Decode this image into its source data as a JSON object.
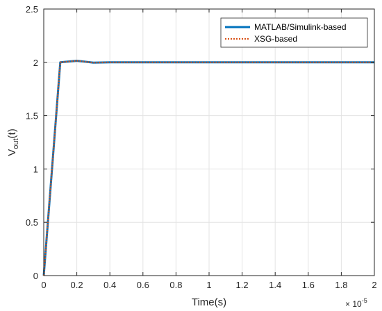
{
  "chart_data": {
    "type": "line",
    "xlabel": "Time(s)",
    "ylabel_base": "V",
    "ylabel_sub": "out",
    "ylabel_rest": "(t)",
    "x_multiplier_base": "× 10",
    "x_multiplier_exp": "-5",
    "xlim": [
      0,
      2
    ],
    "ylim": [
      0,
      2.5
    ],
    "xticks": [
      0,
      0.2,
      0.4,
      0.6,
      0.8,
      1,
      1.2,
      1.4,
      1.6,
      1.8,
      2
    ],
    "xtick_labels": [
      "0",
      "0.2",
      "0.4",
      "0.6",
      "0.8",
      "1",
      "1.2",
      "1.4",
      "1.6",
      "1.8",
      "2"
    ],
    "yticks": [
      0,
      0.5,
      1,
      1.5,
      2,
      2.5
    ],
    "ytick_labels": [
      "0",
      "0.5",
      "1",
      "1.5",
      "2",
      "2.5"
    ],
    "grid": true,
    "legend_position": "top-right",
    "series": [
      {
        "name": "MATLAB/Simulink-based",
        "color": "#0072BD",
        "style": "solid",
        "x": [
          0,
          0.1,
          0.2,
          0.3,
          0.4,
          0.6,
          0.8,
          1.0,
          1.2,
          1.4,
          1.6,
          1.8,
          2.0
        ],
        "y": [
          0,
          2.0,
          2.015,
          1.997,
          2.0,
          2.0,
          2.0,
          2.0,
          2.0,
          2.0,
          2.0,
          2.0,
          2.0
        ]
      },
      {
        "name": "XSG-based",
        "color": "#D95319",
        "style": "dotted",
        "x": [
          0,
          0.1,
          0.2,
          0.3,
          0.4,
          0.6,
          0.8,
          1.0,
          1.2,
          1.4,
          1.6,
          1.8,
          2.0
        ],
        "y": [
          0,
          2.0,
          2.015,
          1.997,
          2.0,
          2.0,
          2.0,
          2.0,
          2.0,
          2.0,
          2.0,
          2.0,
          2.0
        ]
      }
    ]
  }
}
